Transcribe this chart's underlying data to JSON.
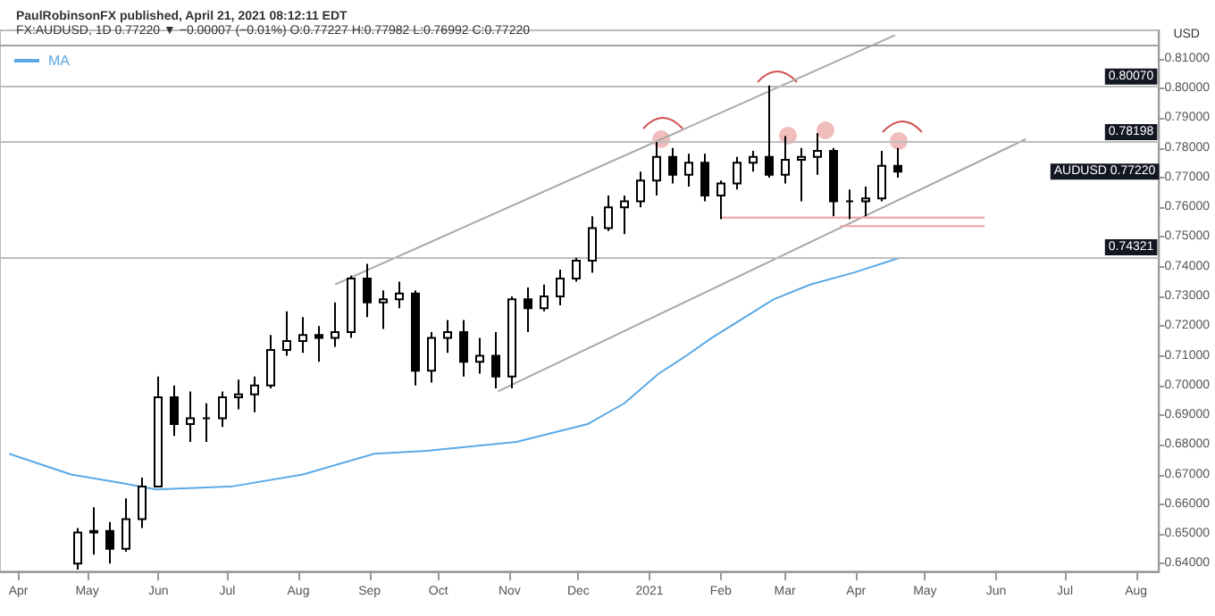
{
  "chart_data": {
    "type": "candlestick",
    "title": "PaulRobinsonFX published, April 21, 2021 08:12:11 EDT",
    "subtitle": "FX:AUDUSD, 1D 0.77220 ▼ −0.00007 (−0.01%) O:0.77227 H:0.77982 L:0.76992 C:0.77220",
    "ylabel": "USD",
    "series": [
      {
        "color": "#000000",
        "x": [
          "2020-04-27",
          "2020-05-04",
          "2020-05-11",
          "2020-05-18",
          "2020-05-25",
          "2020-06-01",
          "2020-06-08",
          "2020-06-15",
          "2020-06-22",
          "2020-06-29",
          "2020-07-06",
          "2020-07-13",
          "2020-07-20",
          "2020-07-27",
          "2020-08-03",
          "2020-08-10",
          "2020-08-17",
          "2020-08-24",
          "2020-08-31",
          "2020-09-07",
          "2020-09-14",
          "2020-09-21",
          "2020-09-28",
          "2020-10-05",
          "2020-10-12",
          "2020-10-19",
          "2020-10-26",
          "2020-11-02",
          "2020-11-09",
          "2020-11-16",
          "2020-11-23",
          "2020-11-30",
          "2020-12-07",
          "2020-12-14",
          "2020-12-21",
          "2020-12-28",
          "2021-01-04",
          "2021-01-11",
          "2021-01-18",
          "2021-01-25",
          "2021-02-01",
          "2021-02-08",
          "2021-02-15",
          "2021-02-22",
          "2021-03-01",
          "2021-03-08",
          "2021-03-15",
          "2021-03-22",
          "2021-03-29",
          "2021-04-05",
          "2021-04-12",
          "2021-04-19"
        ],
        "ohlc": [
          [
            0.64,
            0.652,
            0.638,
            0.6505
          ],
          [
            0.6505,
            0.659,
            0.643,
            0.651
          ],
          [
            0.651,
            0.654,
            0.64,
            0.645
          ],
          [
            0.645,
            0.662,
            0.644,
            0.655
          ],
          [
            0.655,
            0.669,
            0.652,
            0.666
          ],
          [
            0.666,
            0.703,
            0.666,
            0.696
          ],
          [
            0.696,
            0.7,
            0.683,
            0.687
          ],
          [
            0.687,
            0.698,
            0.681,
            0.689
          ],
          [
            0.689,
            0.694,
            0.681,
            0.689
          ],
          [
            0.689,
            0.698,
            0.686,
            0.696
          ],
          [
            0.696,
            0.702,
            0.692,
            0.697
          ],
          [
            0.697,
            0.703,
            0.691,
            0.7
          ],
          [
            0.7,
            0.717,
            0.699,
            0.712
          ],
          [
            0.712,
            0.725,
            0.71,
            0.715
          ],
          [
            0.715,
            0.723,
            0.711,
            0.717
          ],
          [
            0.717,
            0.72,
            0.708,
            0.716
          ],
          [
            0.716,
            0.728,
            0.713,
            0.718
          ],
          [
            0.718,
            0.737,
            0.716,
            0.736
          ],
          [
            0.736,
            0.741,
            0.723,
            0.728
          ],
          [
            0.728,
            0.732,
            0.719,
            0.729
          ],
          [
            0.729,
            0.735,
            0.726,
            0.731
          ],
          [
            0.731,
            0.732,
            0.7,
            0.705
          ],
          [
            0.705,
            0.718,
            0.701,
            0.716
          ],
          [
            0.716,
            0.722,
            0.711,
            0.718
          ],
          [
            0.718,
            0.722,
            0.703,
            0.708
          ],
          [
            0.708,
            0.716,
            0.704,
            0.71
          ],
          [
            0.71,
            0.718,
            0.699,
            0.703
          ],
          [
            0.703,
            0.73,
            0.699,
            0.729
          ],
          [
            0.729,
            0.733,
            0.718,
            0.726
          ],
          [
            0.726,
            0.734,
            0.725,
            0.73
          ],
          [
            0.73,
            0.739,
            0.727,
            0.736
          ],
          [
            0.736,
            0.743,
            0.735,
            0.742
          ],
          [
            0.742,
            0.757,
            0.738,
            0.753
          ],
          [
            0.753,
            0.764,
            0.752,
            0.76
          ],
          [
            0.76,
            0.764,
            0.751,
            0.762
          ],
          [
            0.762,
            0.772,
            0.76,
            0.769
          ],
          [
            0.769,
            0.782,
            0.764,
            0.777
          ],
          [
            0.777,
            0.78,
            0.768,
            0.771
          ],
          [
            0.771,
            0.778,
            0.767,
            0.775
          ],
          [
            0.775,
            0.778,
            0.762,
            0.764
          ],
          [
            0.764,
            0.769,
            0.756,
            0.768
          ],
          [
            0.768,
            0.777,
            0.766,
            0.775
          ],
          [
            0.775,
            0.779,
            0.772,
            0.777
          ],
          [
            0.777,
            0.801,
            0.77,
            0.771
          ],
          [
            0.771,
            0.784,
            0.768,
            0.776
          ],
          [
            0.776,
            0.78,
            0.762,
            0.777
          ],
          [
            0.777,
            0.785,
            0.771,
            0.779
          ],
          [
            0.779,
            0.78,
            0.757,
            0.762
          ],
          [
            0.762,
            0.766,
            0.756,
            0.762
          ],
          [
            0.762,
            0.767,
            0.757,
            0.763
          ],
          [
            0.763,
            0.779,
            0.762,
            0.774
          ],
          [
            0.774,
            0.78,
            0.77,
            0.772
          ]
        ]
      },
      {
        "type": "line",
        "name": "MA",
        "color": "#5aa9e6",
        "x": [
          "2020-03-28",
          "2020-04-24",
          "2020-05-17",
          "2020-05-31",
          "2020-07-03",
          "2020-08-03",
          "2020-09-03",
          "2020-09-26",
          "2020-11-04",
          "2020-12-05",
          "2020-12-21",
          "2021-01-05",
          "2021-01-17",
          "2021-01-28",
          "2021-02-24",
          "2021-03-12",
          "2021-03-31",
          "2021-04-20"
        ],
        "values": [
          0.677,
          0.67,
          0.667,
          0.665,
          0.666,
          0.67,
          0.677,
          0.678,
          0.681,
          0.687,
          0.694,
          0.704,
          0.71,
          0.716,
          0.729,
          0.734,
          0.738,
          0.743
        ]
      },
      {
        "type": "line",
        "color": "#a8a8a8",
        "x": [
          "2020-08-17",
          "2021-04-18"
        ],
        "values": [
          0.734,
          0.818
        ]
      },
      {
        "type": "line",
        "color": "#a8a8a8",
        "x": [
          "2020-10-27",
          "2021-06-14"
        ],
        "values": [
          0.698,
          0.783
        ]
      },
      {
        "type": "line",
        "color": "#f0a0a0",
        "x": [
          "2021-02-01",
          "2021-05-27"
        ],
        "values": [
          0.7565,
          0.7565
        ]
      },
      {
        "type": "line",
        "color": "#f0a0a0",
        "x": [
          "2021-03-25",
          "2021-05-27"
        ],
        "values": [
          0.7537,
          0.7537
        ]
      }
    ],
    "marker": "none",
    "line_style": "solid",
    "legend": "top left",
    "grid": false,
    "ref_lines": [
      {
        "axis": "y",
        "value": 0.8145,
        "label": null,
        "color": "#a0a0a0"
      },
      {
        "axis": "y",
        "value": 0.8007,
        "label": "0.80070",
        "color": "#bdbdbd"
      },
      {
        "axis": "y",
        "value": 0.78198,
        "label": "0.78198",
        "color": "#bdbdbd"
      },
      {
        "axis": "y",
        "value": 0.74321,
        "label": "0.74321",
        "color": "#bdbdbd"
      }
    ],
    "annotations": [
      "AUDUSD 0.77220"
    ],
    "xlim": [
      "2020-03-24",
      "2021-08-11"
    ],
    "xticks": [
      {
        "value": "2020-04-01",
        "label": "Apr"
      },
      {
        "value": "2020-05-01",
        "label": "May"
      },
      {
        "value": "2020-06-01",
        "label": "Jun"
      },
      {
        "value": "2020-07-01",
        "label": "Jul"
      },
      {
        "value": "2020-08-01",
        "label": "Aug"
      },
      {
        "value": "2020-09-01",
        "label": "Sep"
      },
      {
        "value": "2020-10-01",
        "label": "Oct"
      },
      {
        "value": "2020-11-01",
        "label": "Nov"
      },
      {
        "value": "2020-12-01",
        "label": "Dec"
      },
      {
        "value": "2021-01-01",
        "label": "2021"
      },
      {
        "value": "2021-02-01",
        "label": "Feb"
      },
      {
        "value": "2021-03-01",
        "label": "Mar"
      },
      {
        "value": "2021-04-01",
        "label": "Apr"
      },
      {
        "value": "2021-05-01",
        "label": "May"
      },
      {
        "value": "2021-06-01",
        "label": "Jun"
      },
      {
        "value": "2021-07-01",
        "label": "Jul"
      },
      {
        "value": "2021-08-01",
        "label": "Aug"
      }
    ],
    "ylim": [
      0.6374,
      0.8196
    ],
    "yticks": [
      {
        "value": 0.64,
        "label": "0.64000"
      },
      {
        "value": 0.65,
        "label": "0.65000"
      },
      {
        "value": 0.66,
        "label": "0.66000"
      },
      {
        "value": 0.67,
        "label": "0.67000"
      },
      {
        "value": 0.68,
        "label": "0.68000"
      },
      {
        "value": 0.69,
        "label": "0.69000"
      },
      {
        "value": 0.7,
        "label": "0.70000"
      },
      {
        "value": 0.71,
        "label": "0.71000"
      },
      {
        "value": 0.72,
        "label": "0.72000"
      },
      {
        "value": 0.73,
        "label": "0.73000"
      },
      {
        "value": 0.74,
        "label": "0.74000"
      },
      {
        "value": 0.75,
        "label": "0.75000"
      },
      {
        "value": 0.76,
        "label": "0.76000"
      },
      {
        "value": 0.77,
        "label": "0.77000"
      },
      {
        "value": 0.78,
        "label": "0.78000"
      },
      {
        "value": 0.79,
        "label": "0.79000"
      },
      {
        "value": 0.8,
        "label": "0.80000"
      },
      {
        "value": 0.81,
        "label": "0.81000"
      }
    ]
  }
}
